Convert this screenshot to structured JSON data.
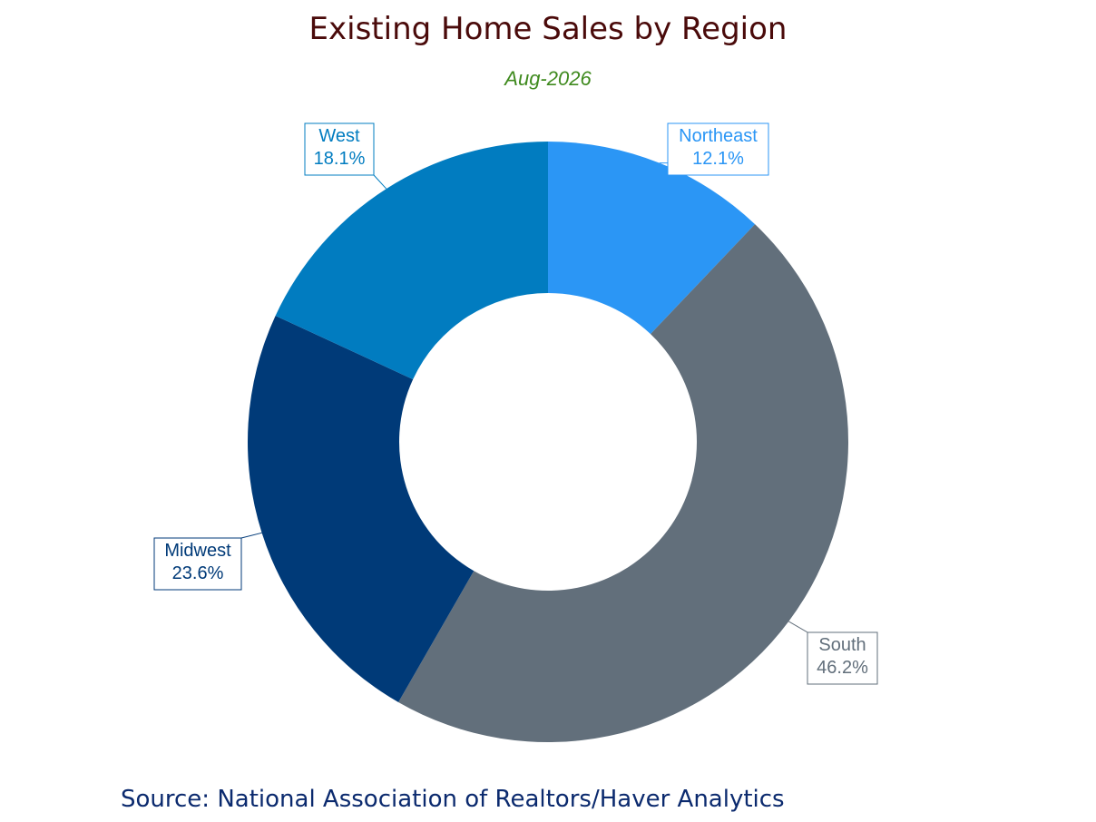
{
  "chart_data": {
    "type": "pie",
    "title": "Existing Home Sales by Region",
    "subtitle": "Aug-2026",
    "donut": true,
    "slices": [
      {
        "name": "Northeast",
        "value": 12.1,
        "label": "12.1%",
        "color": "#2b96f5",
        "label_color": "#2b96f5"
      },
      {
        "name": "South",
        "value": 46.2,
        "label": "46.2%",
        "color": "#626f7b",
        "label_color": "#626f7b"
      },
      {
        "name": "Midwest",
        "value": 23.6,
        "label": "23.6%",
        "color": "#003a78",
        "label_color": "#003a78"
      },
      {
        "name": "West",
        "value": 18.1,
        "label": "18.1%",
        "color": "#017cc0",
        "label_color": "#017cc0"
      }
    ],
    "source": "Source:  National Association of Realtors/Haver Analytics"
  },
  "colors": {
    "title": "#4a0a0a",
    "subtitle": "#3f8a1e",
    "source": "#0b2a6e"
  }
}
